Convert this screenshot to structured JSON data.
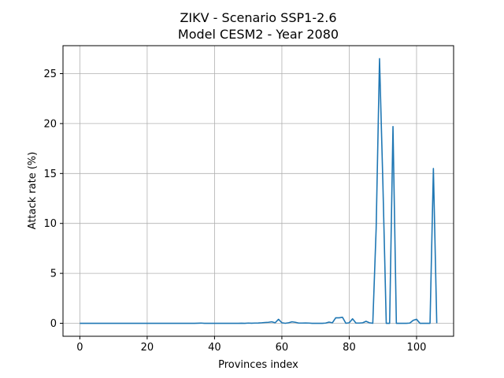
{
  "chart_data": {
    "type": "line",
    "title_line1": "ZIKV - Scenario SSP1-2.6",
    "title_line2": "Model CESM2 - Year 2080",
    "xlabel": "Provinces index",
    "ylabel": "Attack rate (%)",
    "xlim": [
      -5,
      111
    ],
    "ylim": [
      -1.3,
      27.8
    ],
    "grid": true,
    "x_ticks": [
      0,
      20,
      40,
      60,
      80,
      100
    ],
    "y_ticks": [
      0,
      5,
      10,
      15,
      20,
      25
    ],
    "line_color": "#1f77b4",
    "series": [
      {
        "x": [
          0,
          1,
          2,
          3,
          4,
          5,
          6,
          7,
          8,
          9,
          10,
          11,
          12,
          13,
          14,
          15,
          16,
          17,
          18,
          19,
          20,
          21,
          22,
          23,
          24,
          25,
          26,
          27,
          28,
          29,
          30,
          31,
          32,
          33,
          34,
          35,
          36,
          37,
          38,
          39,
          40,
          41,
          42,
          43,
          44,
          45,
          46,
          47,
          48,
          49,
          50,
          51,
          52,
          53,
          54,
          55,
          56,
          57,
          58,
          59,
          60,
          61,
          62,
          63,
          64,
          65,
          66,
          67,
          68,
          69,
          70,
          71,
          72,
          73,
          74,
          75,
          76,
          77,
          78,
          79,
          80,
          81,
          82,
          83,
          84,
          85,
          86,
          87,
          88,
          89,
          90,
          91,
          92,
          93,
          94,
          95,
          96,
          97,
          98,
          99,
          100,
          101,
          102,
          103,
          104,
          105,
          106
        ],
        "values": [
          0,
          0,
          0,
          0,
          0,
          0,
          0,
          0,
          0,
          0,
          0,
          0,
          0,
          0,
          0,
          0,
          0,
          0,
          0,
          0,
          0,
          0,
          0,
          0,
          0,
          0,
          0,
          0,
          0,
          0,
          0,
          0,
          0,
          0,
          0,
          0.01,
          0.02,
          0,
          0,
          0,
          0,
          0,
          0,
          0,
          0,
          0,
          0,
          0,
          0.01,
          0,
          0.02,
          0.01,
          0.02,
          0.03,
          0.05,
          0.08,
          0.1,
          0.15,
          0.05,
          0.4,
          0.05,
          0,
          0.05,
          0.15,
          0.1,
          0.02,
          0.02,
          0.03,
          0.02,
          0,
          0,
          0,
          0,
          0.02,
          0.12,
          0.05,
          0.55,
          0.55,
          0.6,
          0,
          0.05,
          0.45,
          0.02,
          0.02,
          0.05,
          0.2,
          0.05,
          0,
          9.5,
          26.5,
          14,
          0,
          0,
          19.7,
          0,
          0,
          0,
          0,
          0.02,
          0.3,
          0.4,
          0,
          0,
          0,
          0,
          15.5,
          0
        ]
      }
    ]
  }
}
